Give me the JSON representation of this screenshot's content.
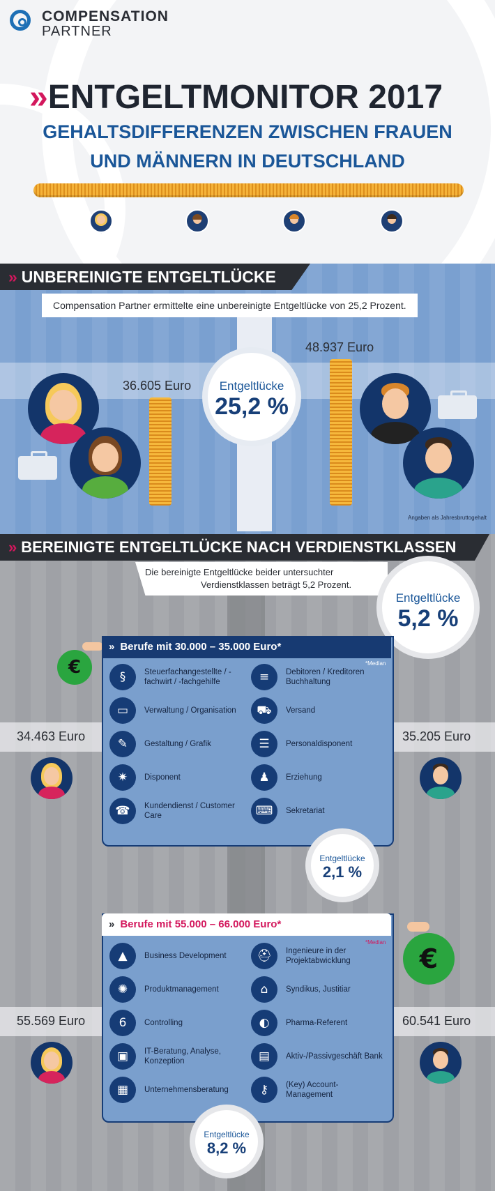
{
  "logo": {
    "line1": "COMPENSATION",
    "line2": "PARTNER"
  },
  "header": {
    "chevron": "»",
    "title": "ENTGELTMONITOR 2017",
    "subtitle1": "GEHALTSDIFFERENZEN ZWISCHEN FRAUEN",
    "subtitle2": "UND MÄNNERN IN DEUTSCHLAND"
  },
  "section1": {
    "banner": "UNBEREINIGTE ENTGELTLÜCKE",
    "intro": "Compensation Partner ermittelte eine unbereinigte Entgeltlücke von 25,2 Prozent.",
    "women_value": "36.605 Euro",
    "men_value": "48.937 Euro",
    "gap_label": "Entgeltlücke",
    "gap_value": "25,2 %",
    "note": "Angaben als Jahresbruttogehalt"
  },
  "section2": {
    "banner": "BEREINIGTE ENTGELTLÜCKE NACH VERDIENSTKLASSEN",
    "intro1": "Die bereinigte Entgeltlücke beider untersuchter",
    "intro2": "Verdienstklassen beträgt 5,2 Prozent.",
    "gap_label": "Entgeltlücke",
    "gap_value": "5,2 %"
  },
  "class1": {
    "title": "Berufe mit 30.000 – 35.000 Euro*",
    "median": "*Median",
    "women_value": "34.463 Euro",
    "men_value": "35.205 Euro",
    "gap_label": "Entgeltlücke",
    "gap_value": "2,1 %",
    "left": [
      {
        "icon": "§",
        "label": "Steuerfachangestellte / -fachwirt / -fachgehilfe"
      },
      {
        "icon": "▭",
        "label": "Verwaltung / Organisation"
      },
      {
        "icon": "✎",
        "label": "Gestaltung / Grafik"
      },
      {
        "icon": "✷",
        "label": "Disponent"
      },
      {
        "icon": "☎",
        "label": "Kundendienst / Customer Care"
      }
    ],
    "right": [
      {
        "icon": "≡",
        "label": "Debitoren / Kreditoren Buchhaltung"
      },
      {
        "icon": "⛟",
        "label": "Versand"
      },
      {
        "icon": "☰",
        "label": "Personaldisponent"
      },
      {
        "icon": "♟",
        "label": "Erziehung"
      },
      {
        "icon": "⌨",
        "label": "Sekretariat"
      }
    ]
  },
  "class2": {
    "title": "Berufe mit 55.000 – 66.000 Euro*",
    "median": "*Median",
    "women_value": "55.569 Euro",
    "men_value": "60.541 Euro",
    "gap_label": "Entgeltlücke",
    "gap_value": "8,2 %",
    "left": [
      {
        "icon": "▲",
        "label": "Business Development"
      },
      {
        "icon": "✺",
        "label": "Produktmanagement"
      },
      {
        "icon": "6",
        "label": "Controlling"
      },
      {
        "icon": "▣",
        "label": "IT-Beratung, Analyse, Konzeption"
      },
      {
        "icon": "▦",
        "label": "Unternehmensberatung"
      }
    ],
    "right": [
      {
        "icon": "⛑",
        "label": "Ingenieure in der Projektabwicklung"
      },
      {
        "icon": "⌂",
        "label": "Syndikus, Justitiar"
      },
      {
        "icon": "◐",
        "label": "Pharma-Referent"
      },
      {
        "icon": "▤",
        "label": "Aktiv-/Passivgeschäft Bank"
      },
      {
        "icon": "⚷",
        "label": "(Key) Account-Management"
      }
    ]
  },
  "money_symbol": "€",
  "colors": {
    "navy": "#173a72",
    "blue": "#1a5698",
    "magenta": "#d3185d",
    "coin": "#f5b33a"
  }
}
